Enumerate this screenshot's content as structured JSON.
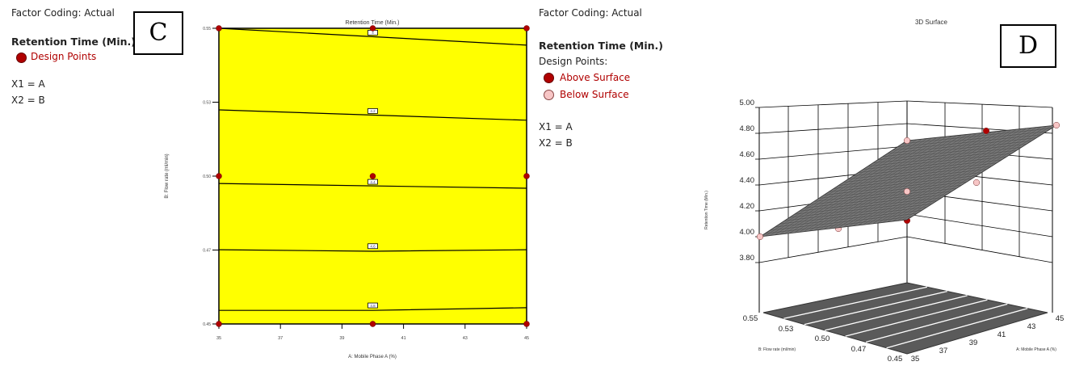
{
  "panel_c": {
    "label": "C",
    "legend": {
      "factor_coding": "Factor Coding: Actual",
      "response": "Retention Time (Min.)",
      "design_points": "Design Points",
      "x1": "X1 = A",
      "x2": "X2 = B"
    }
  },
  "panel_d": {
    "label": "D",
    "legend": {
      "factor_coding": "Factor Coding: Actual",
      "response": "Retention Time (Min.)",
      "design_points": "Design Points:",
      "above": "Above Surface",
      "below": "Below Surface",
      "x1": "X1 = A",
      "x2": "X2 = B"
    }
  },
  "colors": {
    "fill": "#ffff00",
    "point": "#b00000",
    "below_point": "#f7c6c6",
    "surface": "#777777"
  },
  "chart_data": [
    {
      "type": "contour",
      "title": "Retention Time (Min.)",
      "xlabel": "A: Mobile Phase A (%)",
      "ylabel": "B: Flow rate (ml/min)",
      "xlim": [
        35,
        45
      ],
      "ylim": [
        0.45,
        0.55
      ],
      "xticks": [
        "35",
        "37",
        "39",
        "41",
        "43",
        "45"
      ],
      "yticks": [
        "0.45",
        "0.47",
        "0.50",
        "0.53",
        "0.55"
      ],
      "contours": [
        {
          "level": "4",
          "x": [
            35,
            45
          ],
          "y": [
            0.55,
            0.5443
          ]
        },
        {
          "level": "4.2",
          "x": [
            35,
            45
          ],
          "y": [
            0.5224,
            0.5189
          ]
        },
        {
          "level": "4.4",
          "x": [
            35,
            45
          ],
          "y": [
            0.4975,
            0.4959
          ]
        },
        {
          "level": "4.6",
          "x": [
            35,
            40,
            45
          ],
          "y": [
            0.4751,
            0.4746,
            0.4751
          ]
        },
        {
          "level": "4.8",
          "x": [
            35,
            40,
            45
          ],
          "y": [
            0.4546,
            0.4546,
            0.4555
          ]
        }
      ],
      "design_points": [
        [
          35,
          0.45
        ],
        [
          40,
          0.45
        ],
        [
          45,
          0.45
        ],
        [
          35,
          0.5
        ],
        [
          40,
          0.5
        ],
        [
          45,
          0.5
        ],
        [
          35,
          0.55
        ],
        [
          40,
          0.55
        ],
        [
          45,
          0.55
        ]
      ]
    },
    {
      "type": "surface3d",
      "title": "3D Surface",
      "xlabel": "A: Mobile Phase A (%)",
      "ylabel": "B: Flow rate (ml/min)",
      "zlabel": "Retention Time (Min.)",
      "zticks": [
        "5.00",
        "4.80",
        "4.60",
        "4.40",
        "4.20",
        "4.00",
        "3.80"
      ],
      "xticks": [
        "35",
        "37",
        "39",
        "41",
        "43",
        "45"
      ],
      "yticks": [
        "0.55",
        "0.53",
        "0.50",
        "0.47",
        "0.45"
      ],
      "design_points": [
        {
          "status": "below"
        },
        {
          "status": "below"
        },
        {
          "status": "below"
        },
        {
          "status": "above"
        },
        {
          "status": "above"
        },
        {
          "status": "below"
        },
        {
          "status": "below"
        },
        {
          "status": "below"
        },
        {
          "status": "above"
        }
      ]
    }
  ]
}
